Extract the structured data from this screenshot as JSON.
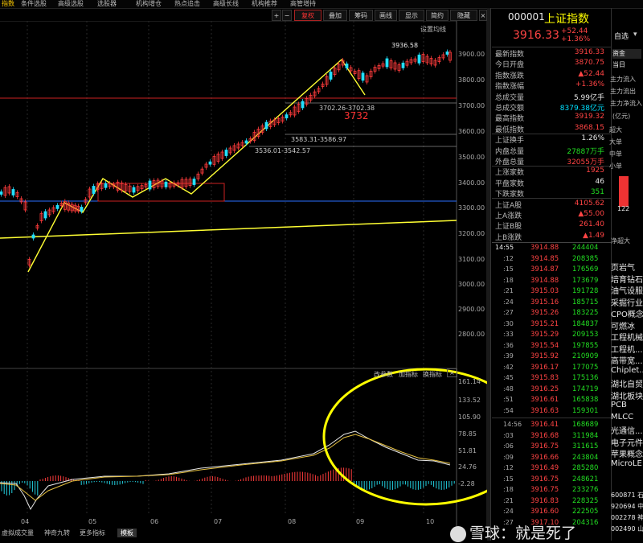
{
  "top_menu": [
    "指数",
    "条件选股",
    "高级选股",
    "选股器",
    "机构增仓",
    "热点追击",
    "高级长线",
    "机构推荐",
    "高管增持"
  ],
  "toolbar": {
    "plus": "+",
    "minus": "−",
    "fuquan": "复权",
    "diejia": "叠加",
    "chouma": "筹码",
    "huaxian": "画线",
    "xianshi": "显示",
    "jianyue": "简约",
    "yincang": "隐藏"
  },
  "chart": {
    "setting_label": "设置均线",
    "price_axis": [
      "3900.00",
      "3800.00",
      "3700.00",
      "3600.00",
      "3500.00",
      "3400.00",
      "3300.00",
      "3200.00",
      "3100.00",
      "3000.00",
      "2900.00",
      "2800.00"
    ],
    "annotations": {
      "high": "3936.58",
      "box1": "3702.26-3702.38",
      "box1_red": "3732",
      "box2": "3583.31-3586.97",
      "box3": "3536.01-3542.57"
    },
    "indicator_tabs": [
      "改参数",
      "加指标",
      "换指标"
    ],
    "indicator_axis": [
      "161.14",
      "133.52",
      "105.90",
      "78.85",
      "51.81",
      "24.76",
      "-2.28"
    ],
    "months": [
      "04",
      "05",
      "06",
      "07",
      "08",
      "09",
      "10"
    ],
    "bottom_tabs": [
      "虚拟成交量",
      "神奇九转",
      "更多指标",
      "模板"
    ]
  },
  "quote": {
    "code": "000001",
    "name": "上证指数",
    "price": "3916.33",
    "change": "+52.44",
    "pct": "+1.36%",
    "fields": [
      {
        "label": "最新指数",
        "value": "3916.33",
        "color": "red"
      },
      {
        "label": "今日开盘",
        "value": "3870.75",
        "color": "red"
      },
      {
        "label": "指数涨跌",
        "value": "▲52.44",
        "color": "red"
      },
      {
        "label": "指数涨幅",
        "value": "+1.36%",
        "color": "red"
      },
      {
        "label": "总成交量",
        "value": "5.99亿手",
        "color": "wht"
      },
      {
        "label": "总成交额",
        "value": "8379.38亿元",
        "color": "cyan"
      },
      {
        "label": "最高指数",
        "value": "3919.32",
        "color": "red"
      },
      {
        "label": "最低指数",
        "value": "3868.15",
        "color": "red"
      },
      {
        "label": "上证换手",
        "value": "1.26%",
        "color": "wht"
      },
      {
        "label": "内盘总量",
        "value": "27887万手",
        "color": "grn"
      },
      {
        "label": "外盘总量",
        "value": "32055万手",
        "color": "red"
      },
      {
        "label": "上涨家数",
        "value": "1925",
        "color": "red"
      },
      {
        "label": "平盘家数",
        "value": "46",
        "color": "wht"
      },
      {
        "label": "下跌家数",
        "value": "351",
        "color": "grn"
      },
      {
        "label": "上证A股",
        "value": "4105.62",
        "color": "red"
      },
      {
        "label": "上A涨跌",
        "value": "▲55.00",
        "color": "red"
      },
      {
        "label": "上证B股",
        "value": "261.40",
        "color": "red"
      },
      {
        "label": "上B涨跌",
        "value": "▲1.49",
        "color": "red"
      }
    ]
  },
  "side": {
    "zixuan": "自选",
    "tabs": [
      "资金",
      "当日"
    ],
    "flows": [
      "主力流入",
      "主力流出",
      "主力净流入"
    ],
    "unit": "(亿元)",
    "sizes": [
      "超大",
      "大单",
      "中单",
      "小单"
    ],
    "bar_value": "122",
    "net_label": "净超大"
  },
  "ticks_1455": [
    [
      ":55",
      "3914.88",
      "244404"
    ],
    [
      ":12",
      "3914.85",
      "208385"
    ],
    [
      ":15",
      "3914.87",
      "176569"
    ],
    [
      ":18",
      "3914.88",
      "173679"
    ],
    [
      ":21",
      "3915.03",
      "191728"
    ],
    [
      ":24",
      "3915.16",
      "185715"
    ],
    [
      ":27",
      "3915.26",
      "183225"
    ],
    [
      ":30",
      "3915.21",
      "184837"
    ],
    [
      ":33",
      "3915.29",
      "209153"
    ],
    [
      ":36",
      "3915.54",
      "197855"
    ],
    [
      ":39",
      "3915.92",
      "210909"
    ],
    [
      ":42",
      "3916.17",
      "177075"
    ],
    [
      ":45",
      "3915.83",
      "175136"
    ],
    [
      ":48",
      "3916.25",
      "174719"
    ],
    [
      ":51",
      "3916.61",
      "165838"
    ],
    [
      ":54",
      "3916.63",
      "159301"
    ]
  ],
  "ticks_1456": [
    [
      "14:56",
      "3916.41",
      "168689"
    ],
    [
      ":03",
      "3916.68",
      "311984"
    ],
    [
      ":06",
      "3916.75",
      "311615"
    ],
    [
      ":09",
      "3916.66",
      "243804"
    ],
    [
      ":12",
      "3916.49",
      "285280"
    ],
    [
      ":15",
      "3916.75",
      "248621"
    ],
    [
      ":18",
      "3916.75",
      "233276"
    ],
    [
      ":21",
      "3916.83",
      "228325"
    ],
    [
      ":24",
      "3916.60",
      "222505"
    ],
    [
      ":27",
      "3917.10",
      "204316"
    ]
  ],
  "sectors": [
    "页岩气",
    "培育钻石",
    "油气设服",
    "采掘行业",
    "CPO概念",
    "可燃冰",
    "工程机械",
    "工程机...",
    "高带宽...",
    "Chiplet...",
    "湖北自贸",
    "湖北板块",
    "PCB",
    "MLCC",
    "光通信...",
    "电子元件",
    "苹果概念",
    "MicroLE"
  ],
  "codes": [
    "600871 石",
    "920694 中",
    "002278 神",
    "002490 山"
  ],
  "watermark": "雪球：就是死了"
}
